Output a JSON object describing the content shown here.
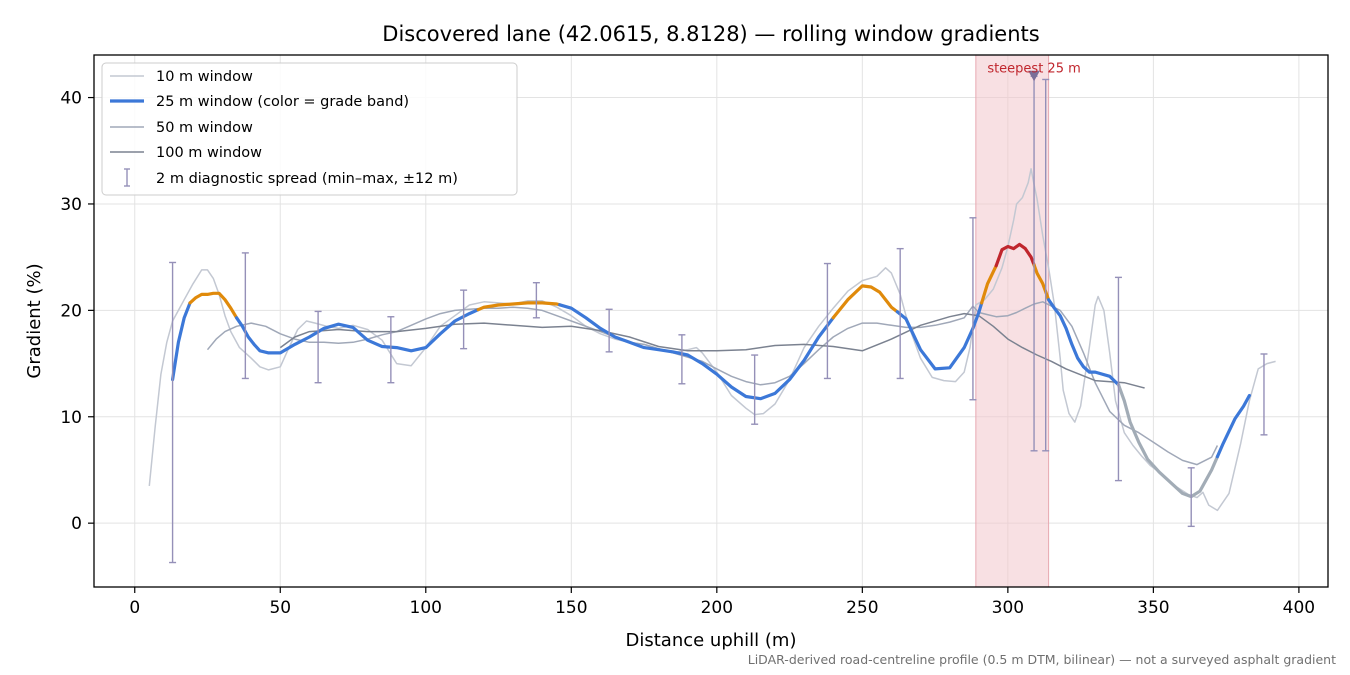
{
  "chart_data": {
    "type": "line",
    "title": "Discovered lane (42.0615, 8.8128) — rolling window gradients",
    "xlabel": "Distance uphill (m)",
    "ylabel": "Gradient (%)",
    "xlim": [
      -14,
      410
    ],
    "ylim": [
      -6,
      44
    ],
    "xticks": [
      0,
      50,
      100,
      150,
      200,
      250,
      300,
      350,
      400
    ],
    "yticks": [
      0,
      10,
      20,
      30,
      40
    ],
    "grid": true,
    "legend_position": "top-left",
    "footnote": "LiDAR-derived road-centreline profile (0.5 m DTM, bilinear) — not a surveyed asphalt gradient",
    "colors": {
      "w10": "#c3c8d2",
      "w50": "#a0a8b8",
      "w100": "#7b8290",
      "band_low": "#3c78d8",
      "band_mid": "#e08a0b",
      "band_high": "#c0262d",
      "band_outside": "#a2acb6",
      "errbar": "#9590b8",
      "highlight": "#f2c7cc",
      "annot": "#c0262d"
    },
    "series": [
      {
        "name": "10 m window",
        "x": [
          5,
          7,
          9,
          11,
          13,
          15,
          17,
          20,
          23,
          25,
          27,
          29,
          31,
          33,
          36,
          40,
          43,
          46,
          50,
          53,
          56,
          59,
          62,
          66,
          70,
          75,
          80,
          85,
          90,
          95,
          100,
          105,
          110,
          115,
          120,
          125,
          130,
          135,
          140,
          145,
          150,
          155,
          160,
          165,
          170,
          175,
          180,
          185,
          190,
          193,
          195,
          200,
          205,
          210,
          213,
          216,
          220,
          225,
          230,
          235,
          240,
          245,
          250,
          255,
          258,
          260,
          263,
          266,
          270,
          274,
          278,
          282,
          285,
          287,
          289,
          292,
          295,
          298,
          300,
          302,
          303,
          305,
          307,
          308,
          309,
          310,
          312,
          314,
          316,
          318,
          319,
          321,
          323,
          325,
          328,
          330,
          331,
          333,
          335,
          337,
          340,
          343,
          346,
          349,
          352,
          355,
          358,
          362,
          365,
          367,
          369,
          372,
          376,
          380,
          383,
          386,
          389,
          392
        ],
        "y": [
          3.5,
          9,
          14,
          17,
          19,
          20,
          21,
          22.5,
          23.8,
          23.8,
          23,
          21.5,
          19.5,
          18,
          16.5,
          15.5,
          14.7,
          14.4,
          14.7,
          16.5,
          18.2,
          19,
          18.8,
          18.5,
          18.3,
          18.6,
          18.2,
          17.2,
          15,
          14.8,
          16.5,
          18.5,
          19.5,
          20.5,
          20.8,
          20.7,
          20.6,
          20.9,
          20.9,
          20.3,
          19.5,
          18.5,
          17.8,
          17.3,
          17,
          16.8,
          16.4,
          16,
          16.3,
          16.5,
          16,
          14.2,
          12,
          10.8,
          10.2,
          10.3,
          11.2,
          13.5,
          16.5,
          18.5,
          20.2,
          21.8,
          22.8,
          23.2,
          24,
          23.5,
          21.5,
          18.5,
          15.5,
          13.7,
          13.4,
          13.3,
          14.2,
          16.5,
          20.5,
          21,
          22,
          24,
          26,
          28.5,
          30,
          30.6,
          32,
          33.3,
          31.8,
          30.5,
          27,
          24,
          20.5,
          15.5,
          12.5,
          10.3,
          9.5,
          11,
          16.5,
          20.5,
          21.3,
          20,
          16,
          11.5,
          8.5,
          7.3,
          6.3,
          5.4,
          4.8,
          4,
          3.4,
          2.7,
          2.4,
          2.9,
          1.7,
          1.2,
          2.8,
          7.5,
          11.5,
          14.5,
          15,
          15.2
        ]
      },
      {
        "name": "25 m window (color = grade band)",
        "x": [
          13,
          15,
          17,
          19,
          21,
          23,
          25,
          27,
          29,
          31,
          33,
          35,
          37,
          39,
          41,
          43,
          46,
          50,
          55,
          60,
          65,
          70,
          75,
          80,
          85,
          90,
          95,
          100,
          105,
          110,
          115,
          120,
          125,
          130,
          135,
          140,
          145,
          150,
          155,
          160,
          165,
          170,
          175,
          180,
          185,
          190,
          195,
          200,
          205,
          210,
          215,
          220,
          225,
          230,
          235,
          240,
          245,
          250,
          253,
          256,
          260,
          265,
          270,
          275,
          280,
          285,
          288,
          290,
          293,
          296,
          298,
          300,
          302,
          304,
          306,
          308,
          310,
          312,
          314,
          316,
          318,
          320,
          322,
          324,
          326,
          328,
          330,
          335,
          338,
          340,
          342,
          345,
          348,
          352,
          356,
          360,
          363,
          366,
          370,
          374,
          378,
          381,
          383
        ],
        "y": [
          13.5,
          17,
          19.3,
          20.7,
          21.2,
          21.5,
          21.5,
          21.6,
          21.6,
          21,
          20.2,
          19.3,
          18.5,
          17.5,
          16.8,
          16.2,
          16,
          16,
          16.8,
          17.5,
          18.3,
          18.7,
          18.4,
          17.2,
          16.6,
          16.5,
          16.2,
          16.5,
          17.8,
          19,
          19.7,
          20.3,
          20.5,
          20.6,
          20.7,
          20.7,
          20.6,
          20.2,
          19.3,
          18.3,
          17.5,
          17,
          16.5,
          16.3,
          16.1,
          15.8,
          15,
          14,
          12.8,
          11.9,
          11.7,
          12.2,
          13.5,
          15.3,
          17.5,
          19.3,
          21,
          22.3,
          22.2,
          21.7,
          20.3,
          19.2,
          16.3,
          14.5,
          14.6,
          16.5,
          18.3,
          19.8,
          22.5,
          24.2,
          25.7,
          26,
          25.8,
          26.2,
          25.8,
          25,
          23.5,
          22.5,
          21,
          20.2,
          19.5,
          18.3,
          16.8,
          15.5,
          14.7,
          14.2,
          14.2,
          13.8,
          13,
          11.5,
          9.5,
          7.6,
          6,
          4.8,
          3.8,
          2.8,
          2.5,
          3,
          5,
          7.5,
          9.8,
          11,
          12
        ]
      },
      {
        "name": "50 m window",
        "x": [
          25,
          28,
          31,
          35,
          40,
          45,
          50,
          55,
          60,
          65,
          70,
          75,
          80,
          85,
          90,
          95,
          100,
          105,
          110,
          115,
          120,
          125,
          130,
          135,
          140,
          145,
          150,
          155,
          160,
          165,
          170,
          175,
          180,
          185,
          190,
          195,
          200,
          205,
          210,
          215,
          220,
          225,
          230,
          235,
          240,
          245,
          250,
          255,
          260,
          265,
          270,
          275,
          280,
          285,
          288,
          290,
          293,
          296,
          300,
          303,
          306,
          309,
          312,
          315,
          318,
          322,
          326,
          330,
          335,
          340,
          345,
          350,
          355,
          360,
          365,
          370,
          372
        ],
        "y": [
          16.3,
          17.3,
          18,
          18.5,
          18.8,
          18.5,
          17.8,
          17.3,
          17,
          17,
          16.9,
          17,
          17.3,
          17.7,
          18,
          18.6,
          19.2,
          19.7,
          20,
          20.1,
          20.2,
          20.2,
          20.3,
          20.2,
          20,
          19.5,
          19,
          18.5,
          18,
          17.5,
          17,
          16.8,
          16.4,
          16,
          15.6,
          15.2,
          14.5,
          13.8,
          13.3,
          13,
          13.2,
          13.8,
          15,
          16.3,
          17.5,
          18.3,
          18.8,
          18.8,
          18.6,
          18.4,
          18.4,
          18.6,
          18.9,
          19.3,
          20.4,
          19.8,
          19.6,
          19.4,
          19.5,
          19.8,
          20.2,
          20.6,
          20.8,
          20.4,
          20,
          18.5,
          16,
          13.2,
          10.5,
          9.2,
          8.5,
          7.6,
          6.7,
          5.9,
          5.5,
          6.2,
          7.3
        ]
      },
      {
        "name": "100 m window",
        "x": [
          50,
          55,
          60,
          65,
          70,
          75,
          80,
          90,
          100,
          110,
          120,
          130,
          140,
          150,
          160,
          170,
          180,
          190,
          200,
          210,
          220,
          230,
          240,
          250,
          260,
          270,
          280,
          285,
          290,
          295,
          300,
          305,
          310,
          315,
          320,
          330,
          340,
          347
        ],
        "y": [
          16.5,
          17.5,
          18,
          18.1,
          18.2,
          18.1,
          18,
          18,
          18.3,
          18.7,
          18.8,
          18.6,
          18.4,
          18.5,
          18.1,
          17.5,
          16.6,
          16.2,
          16.2,
          16.3,
          16.7,
          16.8,
          16.6,
          16.2,
          17.3,
          18.6,
          19.4,
          19.7,
          19.5,
          18.5,
          17.3,
          16.5,
          15.8,
          15.2,
          14.5,
          13.4,
          13.2,
          12.7
        ]
      }
    ],
    "band_segments": [
      {
        "band": "low",
        "x0": 13,
        "x1": 19
      },
      {
        "band": "mid",
        "x0": 19,
        "x1": 35
      },
      {
        "band": "low",
        "x0": 35,
        "x1": 118
      },
      {
        "band": "mid",
        "x0": 118,
        "x1": 146
      },
      {
        "band": "low",
        "x0": 146,
        "x1": 240
      },
      {
        "band": "mid",
        "x0": 240,
        "x1": 262
      },
      {
        "band": "low",
        "x0": 262,
        "x1": 291
      },
      {
        "band": "mid",
        "x0": 291,
        "x1": 296
      },
      {
        "band": "high",
        "x0": 296,
        "x1": 309
      },
      {
        "band": "mid",
        "x0": 309,
        "x1": 314
      },
      {
        "band": "low",
        "x0": 314,
        "x1": 338
      },
      {
        "band": "outside",
        "x0": 338,
        "x1": 372
      },
      {
        "band": "low",
        "x0": 372,
        "x1": 383
      }
    ],
    "diagnostic_spread": {
      "name": "2 m diagnostic spread (min–max, ±12 m)",
      "points": [
        {
          "x": 13,
          "lo": -3.7,
          "hi": 24.5
        },
        {
          "x": 38,
          "lo": 13.6,
          "hi": 25.4
        },
        {
          "x": 63,
          "lo": 13.2,
          "hi": 19.9
        },
        {
          "x": 88,
          "lo": 13.2,
          "hi": 19.4
        },
        {
          "x": 113,
          "lo": 16.4,
          "hi": 21.9
        },
        {
          "x": 138,
          "lo": 19.3,
          "hi": 22.6
        },
        {
          "x": 163,
          "lo": 16.1,
          "hi": 20.1
        },
        {
          "x": 188,
          "lo": 13.1,
          "hi": 17.7
        },
        {
          "x": 213,
          "lo": 9.3,
          "hi": 15.8
        },
        {
          "x": 238,
          "lo": 13.6,
          "hi": 24.4
        },
        {
          "x": 263,
          "lo": 13.6,
          "hi": 25.8
        },
        {
          "x": 288,
          "lo": 11.6,
          "hi": 28.7
        },
        {
          "x": 309,
          "lo": 6.8,
          "hi": 42
        },
        {
          "x": 313,
          "lo": 6.8,
          "hi": 41.7
        },
        {
          "x": 338,
          "lo": 4,
          "hi": 23.1
        },
        {
          "x": 363,
          "lo": -0.3,
          "hi": 5.2
        },
        {
          "x": 388,
          "lo": 8.3,
          "hi": 15.9
        }
      ]
    },
    "steepest_segment": {
      "label": "steepest 25 m",
      "x0": 289,
      "x1": 314,
      "marker_x": 309,
      "marker_y": 42
    }
  }
}
